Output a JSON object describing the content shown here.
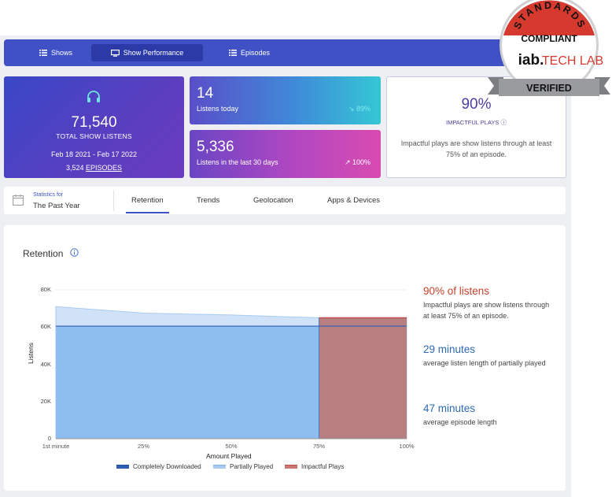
{
  "nav": {
    "items": [
      {
        "label": "Shows",
        "icon": "list-icon"
      },
      {
        "label": "Show Performance",
        "icon": "monitor-icon"
      },
      {
        "label": "Episodes",
        "icon": "list-icon"
      }
    ]
  },
  "total_card": {
    "icon": "headphones-icon",
    "value": "71,540",
    "label": "TOTAL SHOW LISTENS",
    "date_range": "Feb 18 2021 - Feb 17 2022",
    "episodes_count": "3,524",
    "episodes_link": "EPISODES"
  },
  "today_card": {
    "value": "14",
    "label": "Listens today",
    "change": "↘ 89%"
  },
  "thirty_card": {
    "value": "5,336",
    "label": "Listens in the last 30 days",
    "change": "↗ 100%"
  },
  "impact_card": {
    "value": "90%",
    "label": "IMPACTFUL PLAYS ⓘ",
    "description": "Impactful plays are show listens through at least 75% of an episode."
  },
  "filter": {
    "caption": "Statistics for",
    "period": "The Past Year"
  },
  "tabs": [
    {
      "label": "Retention",
      "active": true
    },
    {
      "label": "Trends"
    },
    {
      "label": "Geolocation"
    },
    {
      "label": "Apps & Devices"
    }
  ],
  "retention": {
    "title": "Retention",
    "side": {
      "impact_big": "90% of listens",
      "impact_text": "Impactful plays are show listens through at least 75% of an episode.",
      "avg_partial_big": "29 minutes",
      "avg_partial_text": "average listen length of partially played",
      "avg_episode_big": "47 minutes",
      "avg_episode_text": "average episode length"
    }
  },
  "chart_data": {
    "type": "area",
    "xlabel": "Amount Played",
    "ylabel": "Listens",
    "x": [
      "1st minute",
      "25%",
      "50%",
      "75%",
      "100%"
    ],
    "yticks": [
      "0",
      "20K",
      "40K",
      "60K",
      "80K"
    ],
    "ylim": [
      0,
      80000
    ],
    "series": [
      {
        "name": "Completely Downloaded",
        "values": [
          60500,
          60500,
          60500,
          60500,
          60500
        ]
      },
      {
        "name": "Partially Played",
        "values": [
          71000,
          67500,
          66500,
          65000,
          65000
        ]
      },
      {
        "name": "Impactful Plays",
        "values": [
          null,
          null,
          null,
          65000,
          65000
        ]
      }
    ],
    "legend_position": "bottom",
    "colors": {
      "completely": "#2f5fb3",
      "partially": "#a9cbf1",
      "impactful": "#c0504d"
    }
  },
  "badge": {
    "top_text": "STANDARDS",
    "compliant": "COMPLIANT",
    "brand": "iab.",
    "techlab": "TECH LAB",
    "ribbon": "VERIFIED"
  },
  "colors": {
    "accent": "#3f51c4",
    "impact_red": "#c5422c",
    "link_blue": "#2e6ab3"
  }
}
